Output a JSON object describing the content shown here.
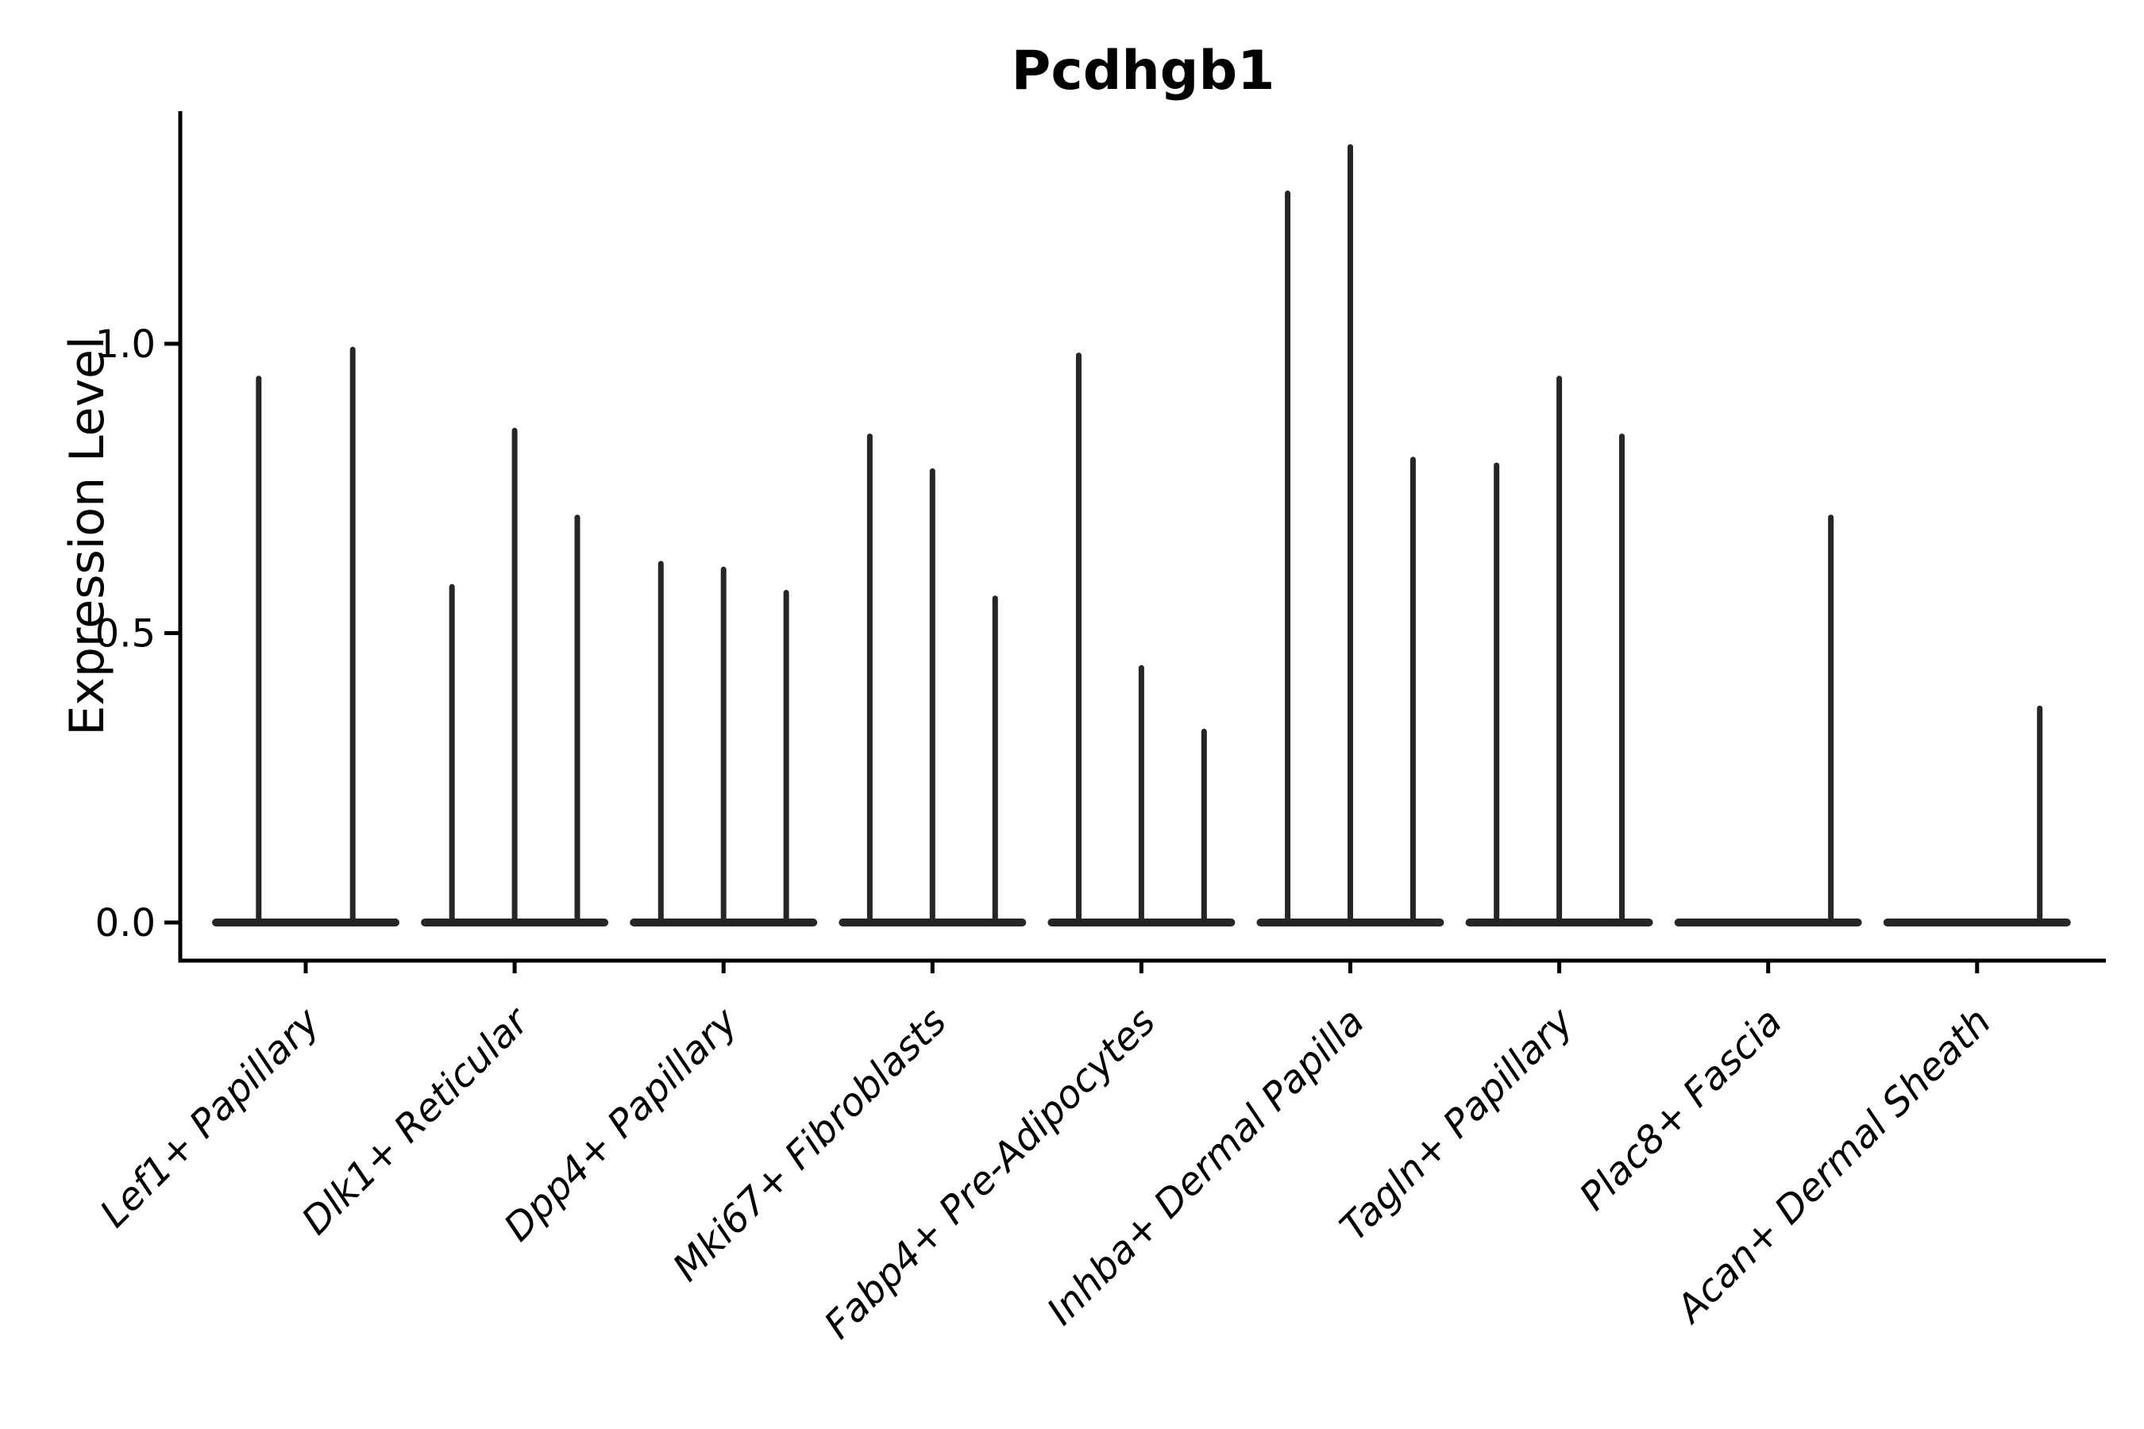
{
  "title": "Pcdhgb1",
  "chart_data": {
    "type": "violin",
    "title": "Pcdhgb1",
    "ylabel": "Expression Level",
    "xlabel": "",
    "ylim": [
      0,
      1.4
    ],
    "grid": false,
    "legend": "none",
    "background": "#ffffff",
    "violin_color": "#262626",
    "axis_color": "#000000",
    "yticks": [
      {
        "value": 0.0,
        "label": "0.0"
      },
      {
        "value": 0.5,
        "label": "0.5"
      },
      {
        "value": 1.0,
        "label": "1.0"
      }
    ],
    "categories": [
      "Lef1+ Papillary",
      "Dlk1+ Reticular",
      "Dpp4+ Papillary",
      "Mki67+ Fibroblasts",
      "Fabp4+ Pre-Adipocytes",
      "Inhba+ Dermal Papilla",
      "Tagln+ Papillary",
      "Plac8+ Fascia",
      "Acan+ Dermal Sheath"
    ],
    "violins": [
      {
        "category": "Lef1+ Papillary",
        "spikes": [
          {
            "offset": -0.225,
            "max": 0.94
          },
          {
            "offset": 0.225,
            "max": 0.99
          }
        ]
      },
      {
        "category": "Dlk1+ Reticular",
        "spikes": [
          {
            "offset": -0.3,
            "max": 0.58
          },
          {
            "offset": 0,
            "max": 0.85
          },
          {
            "offset": 0.3,
            "max": 0.7
          }
        ]
      },
      {
        "category": "Dpp4+ Papillary",
        "spikes": [
          {
            "offset": -0.3,
            "max": 0.62
          },
          {
            "offset": 0,
            "max": 0.61
          },
          {
            "offset": 0.3,
            "max": 0.57
          }
        ]
      },
      {
        "category": "Mki67+ Fibroblasts",
        "spikes": [
          {
            "offset": -0.3,
            "max": 0.84
          },
          {
            "offset": 0,
            "max": 0.78
          },
          {
            "offset": 0.3,
            "max": 0.56
          }
        ]
      },
      {
        "category": "Fabp4+ Pre-Adipocytes",
        "spikes": [
          {
            "offset": -0.3,
            "max": 0.98
          },
          {
            "offset": 0,
            "max": 0.44
          },
          {
            "offset": 0.3,
            "max": 0.33
          }
        ]
      },
      {
        "category": "Inhba+ Dermal Papilla",
        "spikes": [
          {
            "offset": -0.3,
            "max": 1.26
          },
          {
            "offset": 0,
            "max": 1.34
          },
          {
            "offset": 0.3,
            "max": 0.8
          }
        ]
      },
      {
        "category": "Tagln+ Papillary",
        "spikes": [
          {
            "offset": -0.3,
            "max": 0.79
          },
          {
            "offset": 0,
            "max": 0.94
          },
          {
            "offset": 0.3,
            "max": 0.84
          }
        ]
      },
      {
        "category": "Plac8+ Fascia",
        "spikes": [
          {
            "offset": 0.3,
            "max": 0.7
          }
        ]
      },
      {
        "category": "Acan+ Dermal Sheath",
        "spikes": [
          {
            "offset": 0.3,
            "max": 0.37
          }
        ]
      }
    ],
    "baseline_value": 0.0,
    "note": "Each category shows thin violin spikes rising from a flat density band at expression 0"
  }
}
